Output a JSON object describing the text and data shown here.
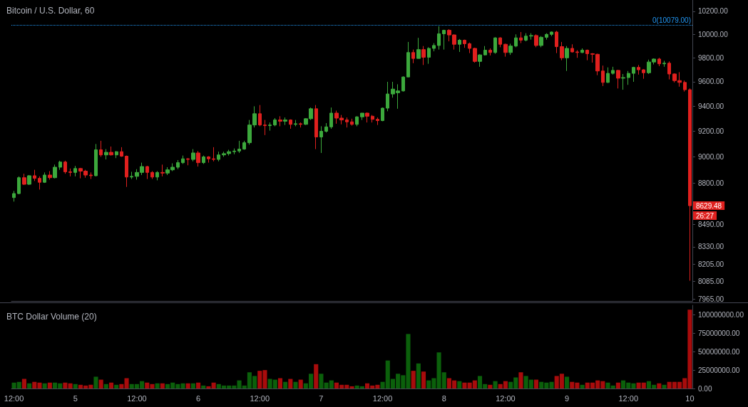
{
  "chart_data": [
    {
      "type": "candlestick",
      "title": "Bitcoin / U.S. Dollar, 60",
      "log": "y",
      "tick_labels": "y",
      "ylim": [
        7950,
        10300
      ],
      "yticks": [
        {
          "value": 7965,
          "label": "7965.00"
        },
        {
          "value": 8085,
          "label": "8085.00"
        },
        {
          "value": 8205,
          "label": "8205.00"
        },
        {
          "value": 8330,
          "label": "8330.00"
        },
        {
          "value": 8490,
          "label": "8490.00"
        },
        {
          "value": 8800,
          "label": "8800.00"
        },
        {
          "value": 9000,
          "label": "9000.00"
        },
        {
          "value": 9200,
          "label": "9200.00"
        },
        {
          "value": 9400,
          "label": "9400.00"
        },
        {
          "value": 9600,
          "label": "9600.00"
        },
        {
          "value": 9800,
          "label": "9800.00"
        },
        {
          "value": 10000,
          "label": "10000.00"
        },
        {
          "value": 10200,
          "label": "10200.00"
        }
      ],
      "categories": [
        null,
        null,
        null,
        null,
        null,
        null,
        null,
        null,
        null,
        null,
        null,
        null,
        null,
        null,
        null,
        null,
        null,
        null,
        null,
        null,
        null,
        null,
        null,
        null,
        null,
        null,
        null,
        null,
        null,
        null,
        null,
        null,
        null,
        null,
        null,
        null,
        null,
        null,
        null,
        null,
        null,
        null,
        null,
        null,
        null,
        null,
        null,
        null,
        null,
        null,
        null,
        null,
        null,
        null,
        null,
        null,
        null,
        null,
        null,
        null,
        null,
        null,
        null,
        null,
        null,
        null,
        null,
        null,
        null,
        null,
        null,
        null,
        null,
        null,
        null,
        null,
        null,
        null,
        null,
        null,
        null,
        null,
        null,
        null,
        null,
        null,
        null,
        null,
        null,
        null,
        null,
        null,
        null,
        null,
        null,
        null,
        null,
        null,
        null,
        null,
        null,
        null,
        null,
        null,
        null,
        null,
        null,
        null,
        null,
        null,
        null,
        null,
        null,
        null,
        null,
        null,
        null,
        null,
        null,
        null,
        null,
        null,
        null,
        null,
        null,
        null,
        null,
        null,
        null,
        null,
        null,
        null,
        null
      ],
      "ohlc": [
        [
          8690,
          8740,
          8660,
          8720
        ],
        [
          8720,
          8850,
          8715,
          8840
        ],
        [
          8840,
          8870,
          8785,
          8790
        ],
        [
          8790,
          8860,
          8785,
          8855
        ],
        [
          8855,
          8900,
          8815,
          8835
        ],
        [
          8835,
          8850,
          8750,
          8805
        ],
        [
          8805,
          8880,
          8800,
          8860
        ],
        [
          8860,
          8890,
          8825,
          8840
        ],
        [
          8840,
          8940,
          8835,
          8920
        ],
        [
          8920,
          8970,
          8900,
          8960
        ],
        [
          8960,
          8970,
          8870,
          8885
        ],
        [
          8885,
          8910,
          8850,
          8880
        ],
        [
          8880,
          8930,
          8850,
          8910
        ],
        [
          8910,
          8915,
          8835,
          8890
        ],
        [
          8890,
          8900,
          8840,
          8860
        ],
        [
          8860,
          8880,
          8830,
          8855
        ],
        [
          8855,
          9100,
          8850,
          9055
        ],
        [
          9055,
          9125,
          9000,
          9015
        ],
        [
          9015,
          9060,
          8980,
          9035
        ],
        [
          9035,
          9080,
          9010,
          9015
        ],
        [
          9015,
          9045,
          8990,
          9040
        ],
        [
          9040,
          9075,
          9000,
          9005
        ],
        [
          9005,
          9010,
          8770,
          8845
        ],
        [
          8845,
          8885,
          8830,
          8850
        ],
        [
          8850,
          8905,
          8825,
          8880
        ],
        [
          8880,
          8955,
          8860,
          8925
        ],
        [
          8925,
          8930,
          8830,
          8880
        ],
        [
          8880,
          8890,
          8830,
          8845
        ],
        [
          8845,
          8890,
          8820,
          8880
        ],
        [
          8880,
          8940,
          8850,
          8875
        ],
        [
          8875,
          8920,
          8860,
          8900
        ],
        [
          8900,
          8950,
          8890,
          8920
        ],
        [
          8920,
          8975,
          8905,
          8955
        ],
        [
          8955,
          9010,
          8945,
          8985
        ],
        [
          8985,
          8990,
          8935,
          8980
        ],
        [
          8980,
          9060,
          8965,
          9030
        ],
        [
          9030,
          9045,
          8925,
          8955
        ],
        [
          8955,
          9010,
          8945,
          9000
        ],
        [
          9000,
          9005,
          8955,
          8985
        ],
        [
          8985,
          9075,
          8965,
          8980
        ],
        [
          8980,
          9040,
          8965,
          9015
        ],
        [
          9015,
          9040,
          9000,
          9025
        ],
        [
          9025,
          9055,
          9010,
          9040
        ],
        [
          9040,
          9065,
          9020,
          9045
        ],
        [
          9045,
          9125,
          9030,
          9060
        ],
        [
          9060,
          9125,
          9055,
          9110
        ],
        [
          9110,
          9290,
          9095,
          9250
        ],
        [
          9250,
          9400,
          9230,
          9340
        ],
        [
          9340,
          9410,
          9240,
          9250
        ],
        [
          9250,
          9290,
          9170,
          9245
        ],
        [
          9245,
          9270,
          9205,
          9250
        ],
        [
          9250,
          9305,
          9240,
          9290
        ],
        [
          9290,
          9320,
          9240,
          9280
        ],
        [
          9280,
          9310,
          9250,
          9290
        ],
        [
          9290,
          9295,
          9220,
          9255
        ],
        [
          9255,
          9290,
          9240,
          9260
        ],
        [
          9260,
          9270,
          9230,
          9255
        ],
        [
          9255,
          9305,
          9250,
          9300
        ],
        [
          9300,
          9390,
          9290,
          9380
        ],
        [
          9380,
          9410,
          9060,
          9155
        ],
        [
          9155,
          9240,
          9030,
          9200
        ],
        [
          9200,
          9265,
          9190,
          9235
        ],
        [
          9235,
          9390,
          9220,
          9345
        ],
        [
          9345,
          9365,
          9260,
          9305
        ],
        [
          9305,
          9330,
          9255,
          9290
        ],
        [
          9290,
          9310,
          9230,
          9275
        ],
        [
          9275,
          9300,
          9245,
          9255
        ],
        [
          9255,
          9320,
          9240,
          9315
        ],
        [
          9315,
          9345,
          9290,
          9345
        ],
        [
          9345,
          9350,
          9270,
          9320
        ],
        [
          9320,
          9330,
          9270,
          9295
        ],
        [
          9295,
          9310,
          9250,
          9285
        ],
        [
          9285,
          9390,
          9280,
          9385
        ],
        [
          9385,
          9600,
          9360,
          9500
        ],
        [
          9500,
          9600,
          9470,
          9540
        ],
        [
          9510,
          9580,
          9380,
          9525
        ],
        [
          9525,
          9645,
          9520,
          9640
        ],
        [
          9640,
          9935,
          9640,
          9845
        ],
        [
          9845,
          9870,
          9755,
          9795
        ],
        [
          9795,
          9970,
          9795,
          9870
        ],
        [
          9870,
          9900,
          9740,
          9805
        ],
        [
          9805,
          9890,
          9750,
          9880
        ],
        [
          9880,
          9925,
          9855,
          9905
        ],
        [
          9905,
          10070,
          9870,
          10005
        ],
        [
          10005,
          10040,
          9870,
          10035
        ],
        [
          10035,
          10045,
          9940,
          9995
        ],
        [
          9995,
          10000,
          9870,
          9915
        ],
        [
          9915,
          9960,
          9850,
          9950
        ],
        [
          9950,
          9955,
          9885,
          9920
        ],
        [
          9920,
          9930,
          9840,
          9880
        ],
        [
          9880,
          9885,
          9760,
          9770
        ],
        [
          9770,
          9830,
          9725,
          9825
        ],
        [
          9825,
          9900,
          9820,
          9865
        ],
        [
          9865,
          9880,
          9820,
          9845
        ],
        [
          9845,
          9975,
          9835,
          9970
        ],
        [
          9970,
          9975,
          9890,
          9915
        ],
        [
          9915,
          9920,
          9810,
          9845
        ],
        [
          9845,
          9920,
          9825,
          9900
        ],
        [
          9900,
          10000,
          9890,
          9970
        ],
        [
          9970,
          10020,
          9925,
          9950
        ],
        [
          9950,
          10010,
          9940,
          9985
        ],
        [
          9985,
          10010,
          9955,
          9990
        ],
        [
          9990,
          10000,
          9890,
          9905
        ],
        [
          9905,
          9985,
          9890,
          9975
        ],
        [
          9975,
          10010,
          9955,
          10000
        ],
        [
          10000,
          10025,
          9985,
          10020
        ],
        [
          10020,
          10030,
          9840,
          9895
        ],
        [
          9895,
          9935,
          9780,
          9800
        ],
        [
          9800,
          9900,
          9690,
          9880
        ],
        [
          9880,
          9915,
          9845,
          9850
        ],
        [
          9850,
          9865,
          9800,
          9845
        ],
        [
          9845,
          9880,
          9840,
          9865
        ],
        [
          9865,
          9870,
          9780,
          9835
        ],
        [
          9835,
          9840,
          9760,
          9830
        ],
        [
          9830,
          9835,
          9655,
          9690
        ],
        [
          9690,
          9735,
          9565,
          9595
        ],
        [
          9595,
          9720,
          9590,
          9670
        ],
        [
          9670,
          9725,
          9660,
          9695
        ],
        [
          9695,
          9700,
          9545,
          9630
        ],
        [
          9630,
          9665,
          9535,
          9635
        ],
        [
          9635,
          9690,
          9575,
          9670
        ],
        [
          9670,
          9725,
          9600,
          9720
        ],
        [
          9720,
          9740,
          9660,
          9700
        ],
        [
          9700,
          9705,
          9625,
          9675
        ],
        [
          9675,
          9785,
          9665,
          9765
        ],
        [
          9765,
          9795,
          9745,
          9790
        ],
        [
          9790,
          9800,
          9730,
          9750
        ],
        [
          9750,
          9775,
          9725,
          9755
        ],
        [
          9755,
          9770,
          9620,
          9665
        ],
        [
          9665,
          9670,
          9595,
          9610
        ],
        [
          9610,
          9680,
          9560,
          9595
        ],
        [
          9595,
          9610,
          9520,
          9535
        ],
        [
          9535,
          9545,
          8090,
          8629.48
        ]
      ],
      "colors": [
        "#3ca83c",
        "#3ca83c",
        "#e0201e",
        "#3ca83c",
        "#e0201e",
        "#e0201e",
        "#3ca83c",
        "#e0201e",
        "#3ca83c",
        "#3ca83c",
        "#e0201e",
        "#e0201e",
        "#3ca83c",
        "#e0201e",
        "#e0201e",
        "#e0201e",
        "#3ca83c",
        "#e0201e",
        "#3ca83c",
        "#e0201e",
        "#3ca83c",
        "#e0201e",
        "#e0201e",
        "#3ca83c",
        "#3ca83c",
        "#3ca83c",
        "#e0201e",
        "#e0201e",
        "#3ca83c",
        "#e0201e",
        "#3ca83c",
        "#3ca83c",
        "#3ca83c",
        "#3ca83c",
        "#e0201e",
        "#3ca83c",
        "#e0201e",
        "#3ca83c",
        "#e0201e",
        "#e0201e",
        "#3ca83c",
        "#3ca83c",
        "#3ca83c",
        "#3ca83c",
        "#3ca83c",
        "#3ca83c",
        "#3ca83c",
        "#3ca83c",
        "#e0201e",
        "#e0201e",
        "#3ca83c",
        "#3ca83c",
        "#e0201e",
        "#3ca83c",
        "#e0201e",
        "#3ca83c",
        "#e0201e",
        "#3ca83c",
        "#3ca83c",
        "#e0201e",
        "#3ca83c",
        "#3ca83c",
        "#3ca83c",
        "#e0201e",
        "#e0201e",
        "#e0201e",
        "#e0201e",
        "#3ca83c",
        "#3ca83c",
        "#e0201e",
        "#e0201e",
        "#e0201e",
        "#3ca83c",
        "#3ca83c",
        "#3ca83c",
        "#3ca83c",
        "#3ca83c",
        "#3ca83c",
        "#e0201e",
        "#3ca83c",
        "#e0201e",
        "#3ca83c",
        "#3ca83c",
        "#3ca83c",
        "#3ca83c",
        "#e0201e",
        "#e0201e",
        "#3ca83c",
        "#e0201e",
        "#e0201e",
        "#e0201e",
        "#3ca83c",
        "#3ca83c",
        "#e0201e",
        "#3ca83c",
        "#e0201e",
        "#e0201e",
        "#3ca83c",
        "#3ca83c",
        "#e0201e",
        "#3ca83c",
        "#3ca83c",
        "#e0201e",
        "#3ca83c",
        "#3ca83c",
        "#3ca83c",
        "#e0201e",
        "#e0201e",
        "#3ca83c",
        "#e0201e",
        "#e0201e",
        "#3ca83c",
        "#e0201e",
        "#e0201e",
        "#e0201e",
        "#e0201e",
        "#3ca83c",
        "#3ca83c",
        "#e0201e",
        "#3ca83c",
        "#3ca83c",
        "#3ca83c",
        "#e0201e",
        "#e0201e",
        "#3ca83c",
        "#3ca83c",
        "#e0201e",
        "#3ca83c",
        "#e0201e",
        "#e0201e",
        "#e0201e",
        "#e0201e",
        "#e0201e"
      ],
      "ref_lines": [
        {
          "axis": "y",
          "value": 10079,
          "label": "0(10079.00)",
          "color": "#2196f3",
          "line_style": "dotted"
        }
      ],
      "annotations": [
        "8629.48",
        "26:27"
      ]
    },
    {
      "type": "bar",
      "title": "BTC Dollar Volume (20)",
      "ylim": [
        0,
        113000000
      ],
      "yticks": [
        {
          "value": 0,
          "label": "0.00"
        },
        {
          "value": 25000000,
          "label": "25000000.00"
        },
        {
          "value": 50000000,
          "label": "50000000.00"
        },
        {
          "value": 75000000,
          "label": "75000000.00"
        },
        {
          "value": 100000000,
          "label": "100000000.00"
        }
      ],
      "categories": [
        "12:00",
        null,
        null,
        null,
        null,
        null,
        null,
        null,
        null,
        null,
        null,
        null,
        "5",
        null,
        null,
        null,
        null,
        null,
        null,
        null,
        null,
        null,
        null,
        null,
        "12:00",
        null,
        null,
        null,
        null,
        null,
        null,
        null,
        null,
        null,
        null,
        null,
        "6",
        null,
        null,
        null,
        null,
        null,
        null,
        null,
        null,
        null,
        null,
        null,
        "12:00",
        null,
        null,
        null,
        null,
        null,
        null,
        null,
        null,
        null,
        null,
        null,
        "7",
        null,
        null,
        null,
        null,
        null,
        null,
        null,
        null,
        null,
        null,
        null,
        "12:00",
        null,
        null,
        null,
        null,
        null,
        null,
        null,
        null,
        null,
        null,
        null,
        "8",
        null,
        null,
        null,
        null,
        null,
        null,
        null,
        null,
        null,
        null,
        null,
        "12:00",
        null,
        null,
        null,
        null,
        null,
        null,
        null,
        null,
        null,
        null,
        null,
        "9",
        null,
        null,
        null,
        null,
        null,
        null,
        null,
        null,
        null,
        null,
        null,
        "12:00",
        null,
        null,
        null,
        null,
        null,
        null,
        null,
        null,
        null,
        null,
        null,
        "10"
      ],
      "values": [
        8000000,
        9000000,
        13000000,
        7000000,
        9000000,
        8000000,
        7000000,
        8000000,
        8000000,
        7000000,
        8000000,
        7000000,
        6000000,
        5000000,
        4000000,
        5000000,
        16000000,
        12000000,
        6000000,
        8000000,
        5000000,
        6000000,
        14000000,
        6000000,
        6000000,
        10000000,
        8000000,
        6000000,
        7000000,
        7000000,
        6000000,
        8000000,
        6000000,
        7000000,
        7000000,
        7000000,
        8000000,
        4000000,
        3000000,
        8000000,
        6000000,
        4000000,
        4000000,
        4000000,
        11000000,
        4000000,
        22000000,
        17000000,
        24000000,
        25000000,
        13000000,
        12000000,
        14000000,
        9000000,
        13000000,
        9000000,
        12000000,
        7000000,
        20000000,
        33000000,
        20000000,
        8000000,
        11000000,
        8000000,
        5000000,
        5000000,
        3000000,
        4000000,
        3000000,
        7000000,
        4000000,
        5000000,
        9000000,
        38000000,
        13000000,
        20000000,
        18000000,
        74000000,
        24000000,
        34000000,
        23000000,
        11000000,
        14000000,
        49000000,
        22000000,
        14000000,
        11000000,
        10000000,
        8000000,
        8000000,
        11000000,
        17000000,
        6000000,
        5000000,
        10000000,
        6000000,
        10000000,
        9000000,
        15000000,
        22000000,
        17000000,
        12000000,
        12000000,
        9000000,
        8000000,
        9000000,
        17000000,
        20000000,
        16000000,
        9000000,
        8000000,
        5000000,
        8000000,
        8000000,
        11000000,
        10000000,
        8000000,
        4000000,
        8000000,
        11000000,
        8000000,
        7000000,
        8000000,
        8000000,
        10000000,
        5000000,
        7000000,
        5000000,
        9000000,
        9000000,
        9000000,
        14000000,
        107000000
      ],
      "colors": [
        "#0b600b",
        "#0b600b",
        "#a80c0c",
        "#0b600b",
        "#a80c0c",
        "#a80c0c",
        "#0b600b",
        "#a80c0c",
        "#0b600b",
        "#0b600b",
        "#a80c0c",
        "#a80c0c",
        "#0b600b",
        "#a80c0c",
        "#a80c0c",
        "#a80c0c",
        "#0b600b",
        "#a80c0c",
        "#0b600b",
        "#a80c0c",
        "#0b600b",
        "#a80c0c",
        "#a80c0c",
        "#0b600b",
        "#0b600b",
        "#0b600b",
        "#a80c0c",
        "#a80c0c",
        "#0b600b",
        "#a80c0c",
        "#0b600b",
        "#0b600b",
        "#0b600b",
        "#0b600b",
        "#a80c0c",
        "#0b600b",
        "#a80c0c",
        "#0b600b",
        "#a80c0c",
        "#a80c0c",
        "#0b600b",
        "#0b600b",
        "#0b600b",
        "#0b600b",
        "#0b600b",
        "#0b600b",
        "#0b600b",
        "#0b600b",
        "#a80c0c",
        "#a80c0c",
        "#0b600b",
        "#0b600b",
        "#a80c0c",
        "#0b600b",
        "#a80c0c",
        "#0b600b",
        "#a80c0c",
        "#0b600b",
        "#0b600b",
        "#a80c0c",
        "#0b600b",
        "#0b600b",
        "#0b600b",
        "#a80c0c",
        "#a80c0c",
        "#a80c0c",
        "#a80c0c",
        "#0b600b",
        "#0b600b",
        "#a80c0c",
        "#a80c0c",
        "#a80c0c",
        "#0b600b",
        "#0b600b",
        "#0b600b",
        "#0b600b",
        "#0b600b",
        "#0b600b",
        "#a80c0c",
        "#0b600b",
        "#a80c0c",
        "#0b600b",
        "#0b600b",
        "#0b600b",
        "#0b600b",
        "#a80c0c",
        "#a80c0c",
        "#0b600b",
        "#a80c0c",
        "#a80c0c",
        "#a80c0c",
        "#0b600b",
        "#0b600b",
        "#a80c0c",
        "#0b600b",
        "#a80c0c",
        "#a80c0c",
        "#0b600b",
        "#0b600b",
        "#a80c0c",
        "#0b600b",
        "#0b600b",
        "#a80c0c",
        "#0b600b",
        "#0b600b",
        "#0b600b",
        "#a80c0c",
        "#a80c0c",
        "#0b600b",
        "#a80c0c",
        "#a80c0c",
        "#0b600b",
        "#a80c0c",
        "#a80c0c",
        "#a80c0c",
        "#a80c0c",
        "#0b600b",
        "#0b600b",
        "#a80c0c",
        "#0b600b",
        "#0b600b",
        "#0b600b",
        "#a80c0c",
        "#a80c0c",
        "#0b600b",
        "#0b600b",
        "#a80c0c",
        "#0b600b",
        "#a80c0c",
        "#a80c0c",
        "#a80c0c",
        "#a80c0c",
        "#a80c0c"
      ]
    }
  ]
}
